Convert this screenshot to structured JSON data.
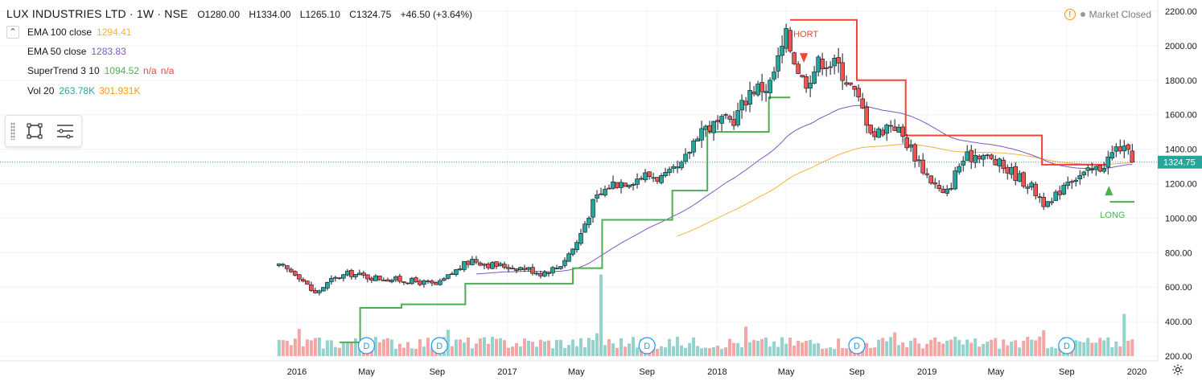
{
  "header": {
    "symbol": "LUX INDUSTRIES LTD · 1W · NSE",
    "open_label": "O",
    "open": "1280.00",
    "high_label": "H",
    "high": "1334.00",
    "low_label": "L",
    "low": "1265.10",
    "close_label": "C",
    "close": "1324.75",
    "change": "+46.50 (+3.64%)"
  },
  "market_status": {
    "text": "Market Closed",
    "warn_icon": "warning-icon"
  },
  "indicators": {
    "ema100": {
      "label": "EMA 100 close",
      "value": "1294.41",
      "color": "#f2b33d"
    },
    "ema50": {
      "label": "EMA 50 close",
      "value": "1283.83",
      "color": "#7e57c2"
    },
    "supertrend": {
      "label": "SuperTrend 3 10",
      "value": "1094.52",
      "na1": "n/a",
      "na2": "n/a",
      "color": "#4caf50",
      "na_color": "#f44336"
    },
    "volume": {
      "label": "Vol 20",
      "value": "263.78K",
      "ma": "301.931K",
      "value_color": "#26a69a",
      "ma_color": "#ff9800"
    }
  },
  "colors": {
    "up": "#26a69a",
    "down": "#ef5350",
    "wick": "#131722",
    "vol_up": "#94d2cc",
    "vol_down": "#f4a5a4",
    "grid": "#f0f3fa",
    "st_up": "#4caf50",
    "st_down": "#f44336"
  },
  "signals": {
    "short_label": "HORT",
    "long_label": "LONG"
  },
  "dividend_label": "D",
  "price_tag": "1324.75",
  "chart_data": {
    "type": "candlestick",
    "interval": "1W",
    "price_axis": {
      "ticks": [
        "2200.00",
        "2000.00",
        "1800.00",
        "1600.00",
        "1400.00",
        "1200.00",
        "1000.00",
        "800.00",
        "600.00",
        "400.00",
        "200.00"
      ],
      "range": [
        200,
        2200
      ]
    },
    "time_axis": {
      "ticks": [
        "2016",
        "May",
        "Sep",
        "2017",
        "May",
        "Sep",
        "2018",
        "May",
        "Sep",
        "2019",
        "May",
        "Sep",
        "2020"
      ]
    },
    "last_close": 1324.75,
    "anchors": [
      [
        "2015-12-01",
        720
      ],
      [
        "2016-01-01",
        680
      ],
      [
        "2016-02-01",
        560
      ],
      [
        "2016-03-01",
        640
      ],
      [
        "2016-04-01",
        680
      ],
      [
        "2016-05-01",
        660
      ],
      [
        "2016-06-01",
        650
      ],
      [
        "2016-07-01",
        640
      ],
      [
        "2016-08-01",
        630
      ],
      [
        "2016-09-01",
        610
      ],
      [
        "2016-10-01",
        690
      ],
      [
        "2016-11-01",
        760
      ],
      [
        "2016-12-01",
        730
      ],
      [
        "2017-01-01",
        720
      ],
      [
        "2017-02-01",
        710
      ],
      [
        "2017-03-01",
        680
      ],
      [
        "2017-04-01",
        720
      ],
      [
        "2017-05-01",
        850
      ],
      [
        "2017-06-01",
        1100
      ],
      [
        "2017-07-01",
        1200
      ],
      [
        "2017-08-01",
        1220
      ],
      [
        "2017-09-01",
        1250
      ],
      [
        "2017-10-01",
        1230
      ],
      [
        "2017-11-01",
        1300
      ],
      [
        "2017-12-01",
        1520
      ],
      [
        "2018-01-01",
        1540
      ],
      [
        "2018-02-01",
        1580
      ],
      [
        "2018-03-01",
        1750
      ],
      [
        "2018-04-01",
        1760
      ],
      [
        "2018-05-01",
        2050
      ],
      [
        "2018-06-01",
        1780
      ],
      [
        "2018-07-01",
        1920
      ],
      [
        "2018-08-01",
        1880
      ],
      [
        "2018-09-01",
        1700
      ],
      [
        "2018-10-01",
        1480
      ],
      [
        "2018-11-01",
        1560
      ],
      [
        "2018-12-01",
        1420
      ],
      [
        "2019-01-01",
        1250
      ],
      [
        "2019-02-01",
        1120
      ],
      [
        "2019-03-01",
        1330
      ],
      [
        "2019-04-01",
        1380
      ],
      [
        "2019-05-01",
        1320
      ],
      [
        "2019-06-01",
        1260
      ],
      [
        "2019-07-01",
        1180
      ],
      [
        "2019-08-01",
        1060
      ],
      [
        "2019-09-01",
        1230
      ],
      [
        "2019-10-01",
        1250
      ],
      [
        "2019-11-01",
        1300
      ],
      [
        "2019-12-01",
        1420
      ],
      [
        "2019-12-27",
        1324.75
      ]
    ],
    "supertrend_steps": [
      [
        "2016-03-15",
        280,
        "up"
      ],
      [
        "2016-04-20",
        480,
        "up"
      ],
      [
        "2016-07-01",
        500,
        "up"
      ],
      [
        "2016-10-20",
        620,
        "up"
      ],
      [
        "2017-04-25",
        710,
        "up"
      ],
      [
        "2017-06-15",
        990,
        "up"
      ],
      [
        "2017-10-15",
        1160,
        "up"
      ],
      [
        "2017-12-15",
        1500,
        "up"
      ],
      [
        "2018-04-01",
        1700,
        "up"
      ],
      [
        "2018-05-08",
        2150,
        "down"
      ],
      [
        "2018-09-01",
        1800,
        "down"
      ],
      [
        "2018-11-25",
        1480,
        "down"
      ],
      [
        "2019-07-20",
        1310,
        "down"
      ],
      [
        "2019-11-15",
        1094.52,
        "up"
      ]
    ],
    "dividend_dates": [
      "2016-05-01",
      "2016-09-05",
      "2017-09-01",
      "2018-09-01",
      "2019-09-01"
    ],
    "signal_points": {
      "short": "2018-05-08",
      "long": "2019-11-12"
    }
  }
}
